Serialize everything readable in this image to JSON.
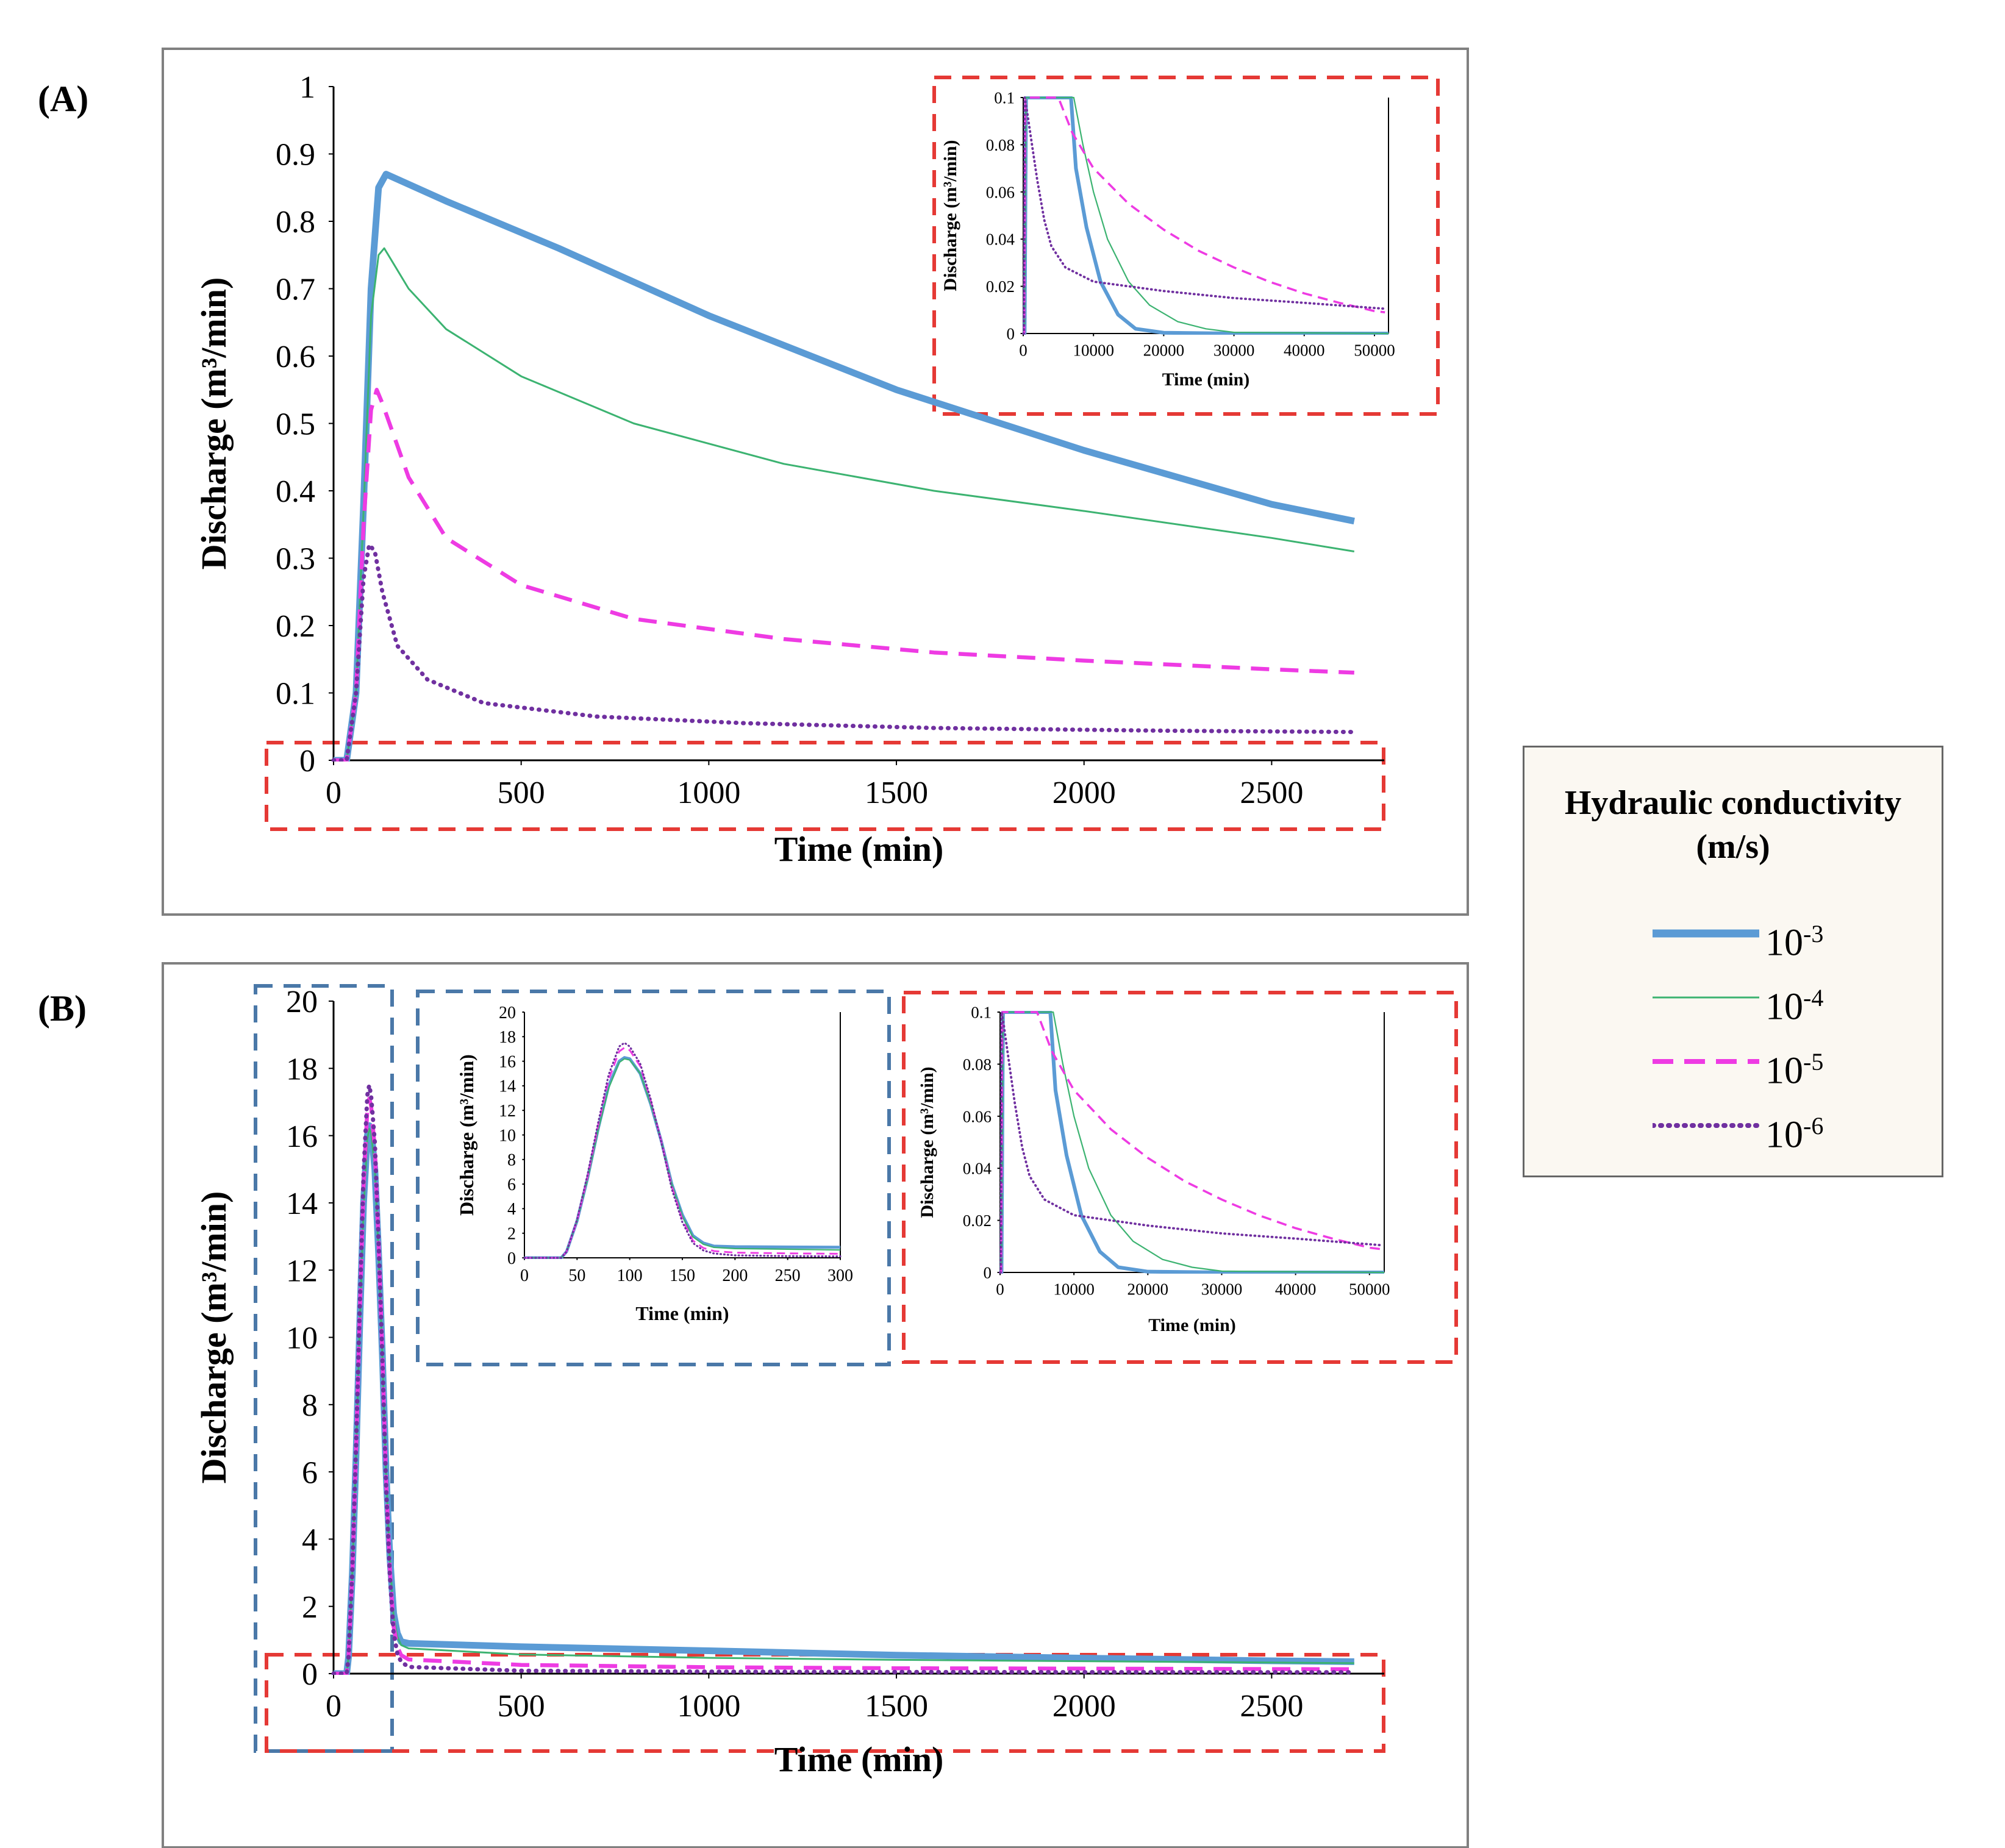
{
  "panels": {
    "a_label": "(A)",
    "b_label": "(B)"
  },
  "legend": {
    "title_line1": "Hydraulic conductivity",
    "title_line2": "(m/s)",
    "base": "10",
    "entries": [
      {
        "exp": "-3",
        "color": "#5b9bd5",
        "style": "solid-thick"
      },
      {
        "exp": "-4",
        "color": "#3cb371",
        "style": "solid-thin"
      },
      {
        "exp": "-5",
        "color": "#ee3be3",
        "style": "dashed"
      },
      {
        "exp": "-6",
        "color": "#7030a0",
        "style": "dotted"
      }
    ]
  },
  "chart_data": [
    {
      "id": "A-main",
      "type": "line",
      "title": "",
      "xlabel": "Time (min)",
      "ylabel": "Discharge (m³/min)",
      "xlim": [
        0,
        2800
      ],
      "ylim": [
        0,
        1
      ],
      "xticks": [
        0,
        500,
        1000,
        1500,
        2000,
        2500
      ],
      "yticks": [
        0,
        0.1,
        0.2,
        0.3,
        0.4,
        0.5,
        0.6,
        0.7,
        0.8,
        0.9,
        1
      ],
      "ytick_labels": [
        "0",
        "0.1",
        "0.2",
        "0.3",
        "0.4",
        "0.5",
        "0.6",
        "0.7",
        "0.8",
        "0.9",
        "1"
      ],
      "series": [
        {
          "name": "10^-3",
          "x": [
            0,
            35,
            60,
            80,
            100,
            120,
            140,
            300,
            600,
            1000,
            1500,
            2000,
            2500,
            2720
          ],
          "y": [
            0,
            0,
            0.1,
            0.38,
            0.7,
            0.85,
            0.87,
            0.83,
            0.76,
            0.66,
            0.55,
            0.46,
            0.38,
            0.355
          ]
        },
        {
          "name": "10^-4",
          "x": [
            0,
            35,
            60,
            80,
            100,
            120,
            135,
            200,
            300,
            500,
            800,
            1200,
            1600,
            2000,
            2500,
            2720
          ],
          "y": [
            0,
            0,
            0.1,
            0.37,
            0.66,
            0.75,
            0.76,
            0.7,
            0.64,
            0.57,
            0.5,
            0.44,
            0.4,
            0.37,
            0.33,
            0.31
          ]
        },
        {
          "name": "10^-5",
          "x": [
            0,
            35,
            60,
            80,
            100,
            115,
            130,
            200,
            300,
            500,
            800,
            1200,
            1600,
            2000,
            2500,
            2720
          ],
          "y": [
            0,
            0,
            0.1,
            0.35,
            0.52,
            0.55,
            0.53,
            0.42,
            0.33,
            0.26,
            0.21,
            0.18,
            0.16,
            0.148,
            0.135,
            0.13
          ]
        },
        {
          "name": "10^-6",
          "x": [
            0,
            35,
            60,
            80,
            95,
            110,
            130,
            170,
            250,
            400,
            700,
            1100,
            1600,
            2200,
            2720
          ],
          "y": [
            0,
            0,
            0.1,
            0.27,
            0.32,
            0.31,
            0.25,
            0.17,
            0.12,
            0.085,
            0.065,
            0.055,
            0.048,
            0.044,
            0.042
          ]
        }
      ]
    },
    {
      "id": "A-inset",
      "type": "line",
      "xlabel": "Time (min)",
      "ylabel": "Discharge (m³/min)",
      "xlim": [
        0,
        52000
      ],
      "ylim": [
        0,
        0.1
      ],
      "xticks": [
        0,
        10000,
        20000,
        30000,
        40000,
        50000
      ],
      "yticks": [
        0,
        0.02,
        0.04,
        0.06,
        0.08,
        0.1
      ],
      "ytick_labels": [
        "0",
        "0.02",
        "0.04",
        "0.06",
        "0.08",
        "0.1"
      ],
      "series": [
        {
          "name": "10^-3",
          "x": [
            0,
            200,
            400,
            6800,
            7500,
            9000,
            11000,
            13500,
            16000,
            20000,
            30000,
            52000
          ],
          "y": [
            0,
            0,
            0.1,
            0.1,
            0.07,
            0.045,
            0.022,
            0.008,
            0.002,
            0.0003,
            0,
            0
          ]
        },
        {
          "name": "10^-4",
          "x": [
            0,
            200,
            400,
            7200,
            8500,
            10000,
            12000,
            15000,
            18000,
            22000,
            26000,
            30000,
            52000
          ],
          "y": [
            0,
            0,
            0.1,
            0.1,
            0.08,
            0.06,
            0.04,
            0.022,
            0.012,
            0.005,
            0.002,
            0.0005,
            0
          ]
        },
        {
          "name": "10^-5",
          "x": [
            0,
            150,
            300,
            5000,
            7000,
            10000,
            15000,
            20000,
            25000,
            30000,
            35000,
            40000,
            45000,
            50000,
            51500
          ],
          "y": [
            0,
            0,
            0.1,
            0.1,
            0.085,
            0.07,
            0.055,
            0.044,
            0.035,
            0.028,
            0.022,
            0.017,
            0.013,
            0.0095,
            0.009
          ]
        },
        {
          "name": "10^-6",
          "x": [
            0,
            100,
            200,
            500,
            1000,
            2000,
            3000,
            4000,
            6000,
            8000,
            10000,
            15000,
            20000,
            30000,
            40000,
            51500
          ],
          "y": [
            0,
            0,
            0.1,
            0.095,
            0.085,
            0.065,
            0.048,
            0.037,
            0.028,
            0.025,
            0.022,
            0.02,
            0.018,
            0.015,
            0.013,
            0.0105
          ]
        }
      ]
    },
    {
      "id": "B-main",
      "type": "line",
      "title": "",
      "xlabel": "Time (min)",
      "ylabel": "Discharge (m³/min)",
      "xlim": [
        0,
        2800
      ],
      "ylim": [
        0,
        20
      ],
      "xticks": [
        0,
        500,
        1000,
        1500,
        2000,
        2500
      ],
      "yticks": [
        0,
        2,
        4,
        6,
        8,
        10,
        12,
        14,
        16,
        18,
        20
      ],
      "ytick_labels": [
        "0",
        "2",
        "4",
        "6",
        "8",
        "10",
        "12",
        "14",
        "16",
        "18",
        "20"
      ],
      "series": [
        {
          "name": "10^-3",
          "x": [
            0,
            35,
            40,
            50,
            60,
            70,
            80,
            90,
            95,
            100,
            110,
            120,
            130,
            140,
            150,
            160,
            170,
            180,
            200,
            500,
            1000,
            1500,
            2000,
            2500,
            2720
          ],
          "y": [
            0,
            0,
            0.5,
            3,
            6.5,
            10.5,
            14,
            16,
            16.3,
            16.2,
            15,
            12.5,
            9.5,
            6,
            3.5,
            1.8,
            1.2,
            0.95,
            0.9,
            0.8,
            0.68,
            0.55,
            0.46,
            0.38,
            0.355
          ]
        },
        {
          "name": "10^-4",
          "x": [
            0,
            35,
            40,
            50,
            60,
            70,
            80,
            90,
            95,
            100,
            110,
            120,
            130,
            140,
            150,
            160,
            170,
            180,
            200,
            500,
            1000,
            1500,
            2000,
            2500,
            2720
          ],
          "y": [
            0,
            0,
            0.5,
            3,
            6.4,
            10.4,
            13.8,
            15.9,
            16.2,
            16.1,
            15,
            12.5,
            9.5,
            6,
            3.4,
            1.7,
            1.1,
            0.85,
            0.75,
            0.57,
            0.47,
            0.41,
            0.37,
            0.33,
            0.31
          ]
        },
        {
          "name": "10^-5",
          "x": [
            0,
            35,
            40,
            50,
            60,
            70,
            80,
            90,
            95,
            100,
            110,
            120,
            130,
            140,
            150,
            160,
            170,
            180,
            200,
            500,
            1000,
            1500,
            2000,
            2500,
            2720
          ],
          "y": [
            0,
            0,
            0.5,
            3,
            6.6,
            10.8,
            14.5,
            16.8,
            17.1,
            16.9,
            15.6,
            12.8,
            9.5,
            5.8,
            3.1,
            1.4,
            0.8,
            0.55,
            0.42,
            0.26,
            0.19,
            0.16,
            0.148,
            0.135,
            0.13
          ]
        },
        {
          "name": "10^-6",
          "x": [
            0,
            35,
            40,
            50,
            60,
            70,
            80,
            90,
            95,
            100,
            110,
            120,
            130,
            140,
            150,
            160,
            170,
            180,
            200,
            500,
            1000,
            1500,
            2000,
            2500,
            2720
          ],
          "y": [
            0,
            0,
            0.5,
            3.1,
            6.8,
            11,
            14.9,
            17.2,
            17.5,
            17.2,
            15.8,
            12.9,
            9.4,
            5.6,
            2.9,
            1.2,
            0.6,
            0.35,
            0.2,
            0.085,
            0.058,
            0.048,
            0.044,
            0.042,
            0.042
          ]
        }
      ]
    },
    {
      "id": "B-inset-left",
      "type": "line",
      "xlabel": "Time (min)",
      "ylabel": "Discharge (m³/min)",
      "xlim": [
        0,
        300
      ],
      "ylim": [
        0,
        20
      ],
      "xticks": [
        0,
        50,
        100,
        150,
        200,
        250,
        300
      ],
      "yticks": [
        0,
        2,
        4,
        6,
        8,
        10,
        12,
        14,
        16,
        18,
        20
      ],
      "ytick_labels": [
        "0",
        "2",
        "4",
        "6",
        "8",
        "10",
        "12",
        "14",
        "16",
        "18",
        "20"
      ],
      "series": [
        {
          "name": "10^-3",
          "x": [
            0,
            35,
            40,
            50,
            60,
            70,
            80,
            90,
            95,
            100,
            110,
            120,
            130,
            140,
            150,
            160,
            170,
            180,
            200,
            250,
            300
          ],
          "y": [
            0,
            0,
            0.5,
            3,
            6.5,
            10.5,
            14,
            16,
            16.3,
            16.2,
            15,
            12.5,
            9.5,
            6,
            3.5,
            1.8,
            1.2,
            0.95,
            0.9,
            0.88,
            0.86
          ]
        },
        {
          "name": "10^-4",
          "x": [
            0,
            35,
            40,
            50,
            60,
            70,
            80,
            90,
            95,
            100,
            110,
            120,
            130,
            140,
            150,
            160,
            170,
            180,
            200,
            250,
            300
          ],
          "y": [
            0,
            0,
            0.5,
            3,
            6.4,
            10.4,
            13.8,
            15.9,
            16.2,
            16.1,
            15,
            12.5,
            9.5,
            6,
            3.4,
            1.7,
            1.1,
            0.85,
            0.75,
            0.7,
            0.64
          ]
        },
        {
          "name": "10^-5",
          "x": [
            0,
            35,
            40,
            50,
            60,
            70,
            80,
            90,
            95,
            100,
            110,
            120,
            130,
            140,
            150,
            160,
            170,
            180,
            200,
            250,
            300
          ],
          "y": [
            0,
            0,
            0.5,
            3,
            6.6,
            10.8,
            14.5,
            16.8,
            17.1,
            16.9,
            15.6,
            12.8,
            9.5,
            5.8,
            3.1,
            1.4,
            0.8,
            0.55,
            0.42,
            0.36,
            0.33
          ]
        },
        {
          "name": "10^-6",
          "x": [
            0,
            35,
            40,
            50,
            60,
            70,
            80,
            90,
            95,
            100,
            110,
            120,
            130,
            140,
            150,
            160,
            170,
            180,
            200,
            250,
            300
          ],
          "y": [
            0,
            0,
            0.5,
            3.1,
            6.8,
            11,
            14.9,
            17.2,
            17.5,
            17.2,
            15.8,
            12.9,
            9.4,
            5.6,
            2.9,
            1.2,
            0.6,
            0.35,
            0.2,
            0.14,
            0.12
          ]
        }
      ]
    },
    {
      "id": "B-inset-right",
      "type": "line",
      "xlabel": "Time (min)",
      "ylabel": "Discharge (m³/min)",
      "xlim": [
        0,
        52000
      ],
      "ylim": [
        0,
        0.1
      ],
      "xticks": [
        0,
        10000,
        20000,
        30000,
        40000,
        50000
      ],
      "yticks": [
        0,
        0.02,
        0.04,
        0.06,
        0.08,
        0.1
      ],
      "ytick_labels": [
        "0",
        "0.02",
        "0.04",
        "0.06",
        "0.08",
        "0.1"
      ],
      "series": [
        {
          "name": "10^-3",
          "x": [
            0,
            200,
            400,
            6800,
            7500,
            9000,
            11000,
            13500,
            16000,
            20000,
            30000,
            52000
          ],
          "y": [
            0,
            0,
            0.1,
            0.1,
            0.07,
            0.045,
            0.022,
            0.008,
            0.002,
            0.0003,
            0,
            0
          ]
        },
        {
          "name": "10^-4",
          "x": [
            0,
            200,
            400,
            7200,
            8500,
            10000,
            12000,
            15000,
            18000,
            22000,
            26000,
            30000,
            52000
          ],
          "y": [
            0,
            0,
            0.1,
            0.1,
            0.08,
            0.06,
            0.04,
            0.022,
            0.012,
            0.005,
            0.002,
            0.0005,
            0
          ]
        },
        {
          "name": "10^-5",
          "x": [
            0,
            150,
            300,
            5000,
            7000,
            10000,
            15000,
            20000,
            25000,
            30000,
            35000,
            40000,
            45000,
            50000,
            51500
          ],
          "y": [
            0,
            0,
            0.1,
            0.1,
            0.085,
            0.07,
            0.055,
            0.044,
            0.035,
            0.028,
            0.022,
            0.017,
            0.013,
            0.0095,
            0.009
          ]
        },
        {
          "name": "10^-6",
          "x": [
            0,
            100,
            200,
            500,
            1000,
            2000,
            3000,
            4000,
            6000,
            8000,
            10000,
            15000,
            20000,
            30000,
            40000,
            51500
          ],
          "y": [
            0,
            0,
            0.1,
            0.095,
            0.085,
            0.065,
            0.048,
            0.037,
            0.028,
            0.025,
            0.022,
            0.02,
            0.018,
            0.015,
            0.013,
            0.0105
          ]
        }
      ]
    }
  ]
}
